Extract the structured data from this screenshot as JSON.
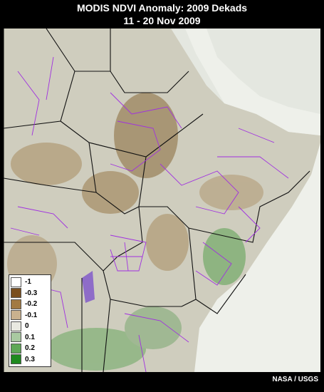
{
  "header": {
    "title": "MODIS NDVI Anomaly: 2009 Dekads",
    "subtitle": "11 - 20 Nov 2009"
  },
  "legend": {
    "items": [
      {
        "label": "-1",
        "color": "#ffffff"
      },
      {
        "label": "-0.3",
        "color": "#7a4f1e"
      },
      {
        "label": "-0.2",
        "color": "#a27a42"
      },
      {
        "label": "-0.1",
        "color": "#c9b18e"
      },
      {
        "label": "0",
        "color": "#e9e9e1"
      },
      {
        "label": "0.1",
        "color": "#a9c9a1"
      },
      {
        "label": "0.2",
        "color": "#5fa857"
      },
      {
        "label": "0.3",
        "color": "#1f8a1f"
      }
    ]
  },
  "footer": {
    "credit": "NASA / USGS"
  }
}
